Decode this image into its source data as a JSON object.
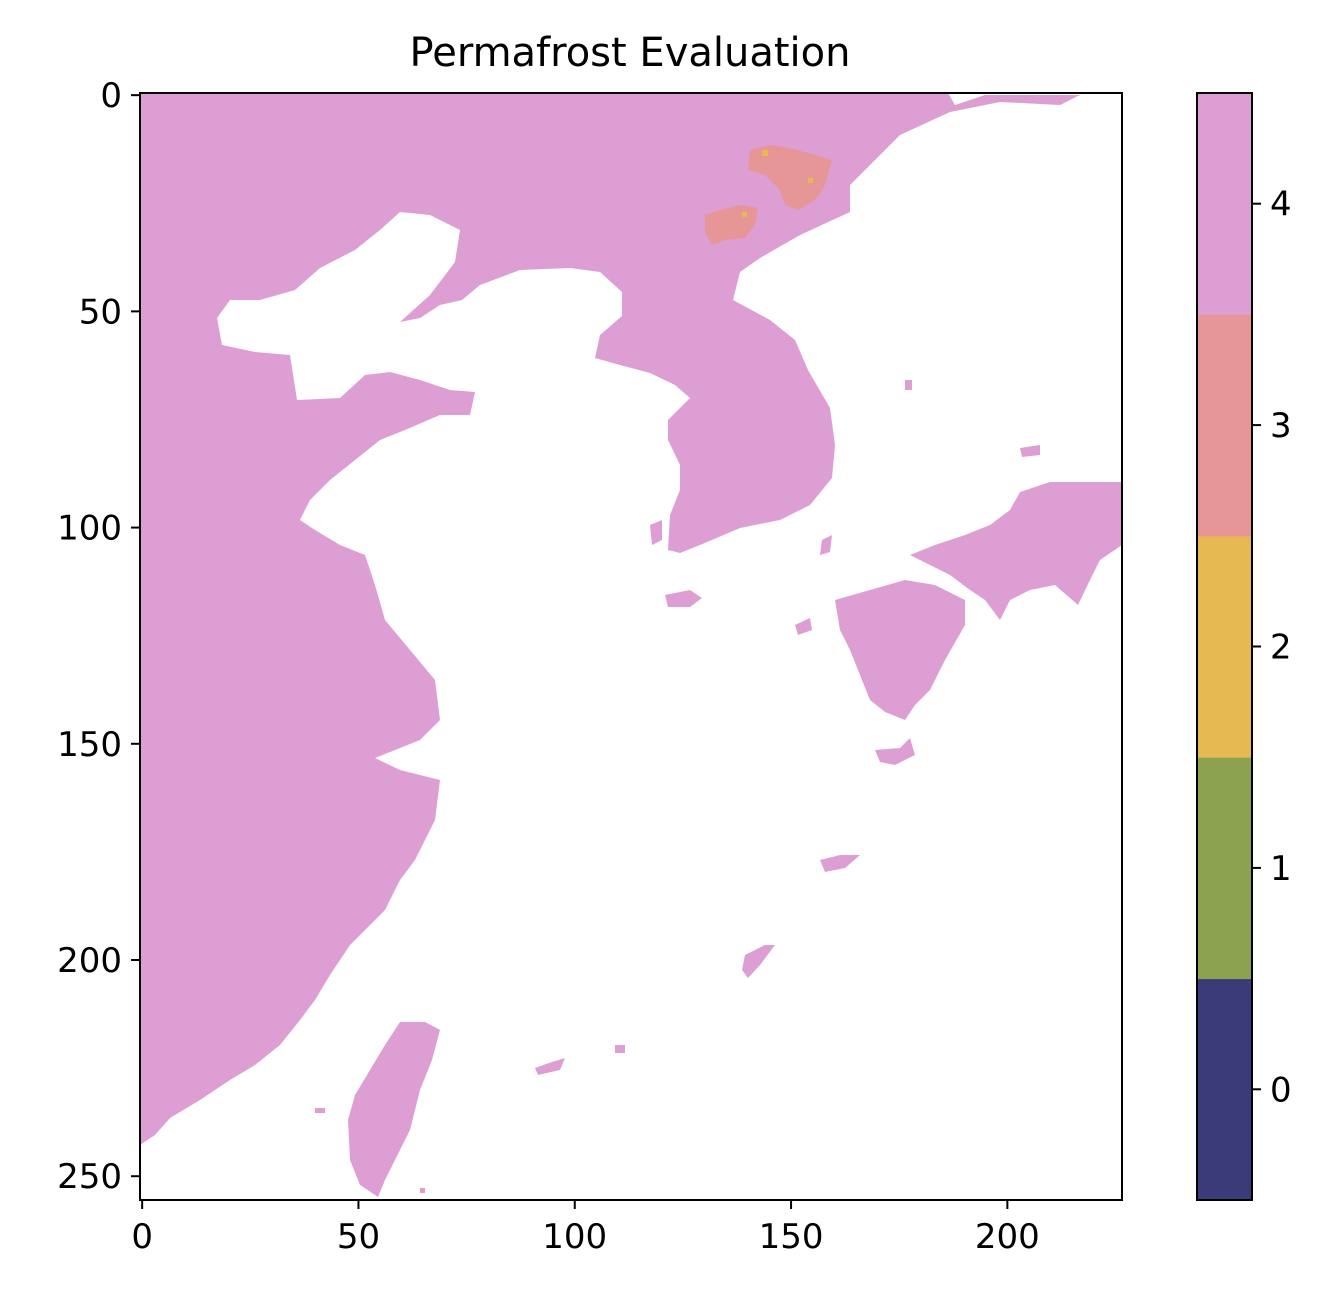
{
  "chart_data": {
    "type": "heatmap",
    "title": "Permafrost Evaluation",
    "xlabel": "",
    "ylabel": "",
    "xlim": [
      0,
      227
    ],
    "ylim": [
      256,
      0
    ],
    "x_ticks": [
      0,
      50,
      100,
      150,
      200
    ],
    "y_ticks": [
      0,
      50,
      100,
      150,
      200,
      250
    ],
    "colorbar": {
      "categories": [
        0,
        1,
        2,
        3,
        4
      ],
      "colors": [
        "#3b3b79",
        "#8da251",
        "#e6b952",
        "#e69696",
        "#dd9ed3"
      ],
      "tick_labels": [
        "0",
        "1",
        "2",
        "3",
        "4"
      ]
    },
    "background_color": "#ffffff",
    "dominant_value": 4,
    "minor_values_present": [
      3,
      2
    ]
  }
}
